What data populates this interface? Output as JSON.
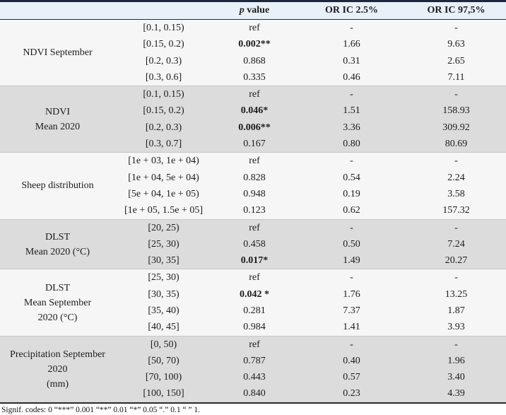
{
  "colors": {
    "header_bg": "#e9f1f8",
    "group_light_bg": "#f6f6f6",
    "group_dark_bg": "#dcdcdc",
    "frame_rule": "#1c2742"
  },
  "table": {
    "header": {
      "p_italic": "p",
      "p_rest": " value",
      "or_low": "OR IC 2.5%",
      "or_high": "OR IC 97,5%"
    },
    "groups": [
      {
        "label_lines": [
          "NDVI September"
        ],
        "shade": "light",
        "rows": [
          {
            "interval": "[0.1, 0.15)",
            "p": "ref",
            "or_low": "-",
            "or_high": "-"
          },
          {
            "interval": "[0.15, 0.2)",
            "p": "0.002**",
            "or_low": "1.66",
            "or_high": "9.63"
          },
          {
            "interval": "[0.2, 0.3)",
            "p": "0.868",
            "or_low": "0.31",
            "or_high": "2.65"
          },
          {
            "interval": "[0.3, 0.6]",
            "p": "0.335",
            "or_low": "0.46",
            "or_high": "7.11"
          }
        ]
      },
      {
        "label_lines": [
          "NDVI",
          "Mean 2020"
        ],
        "shade": "dark",
        "rows": [
          {
            "interval": "[0.1, 0.15)",
            "p": "ref",
            "or_low": "-",
            "or_high": "-"
          },
          {
            "interval": "[0.15, 0.2)",
            "p": "0.046*",
            "or_low": "1.51",
            "or_high": "158.93"
          },
          {
            "interval": "[0.2, 0.3)",
            "p": "0.006**",
            "or_low": "3.36",
            "or_high": "309.92"
          },
          {
            "interval": "[0.3, 0.7]",
            "p": "0.167",
            "or_low": "0.80",
            "or_high": "80.69"
          }
        ]
      },
      {
        "label_lines": [
          "Sheep distribution"
        ],
        "shade": "light",
        "rows": [
          {
            "interval": "[1e + 03, 1e + 04)",
            "p": "ref",
            "or_low": "-",
            "or_high": "-"
          },
          {
            "interval": "[1e + 04, 5e + 04)",
            "p": "0.828",
            "or_low": "0.54",
            "or_high": "2.24"
          },
          {
            "interval": "[5e + 04, 1e + 05)",
            "p": "0.948",
            "or_low": "0.19",
            "or_high": "3.58"
          },
          {
            "interval": "[1e + 05, 1.5e + 05]",
            "p": "0.123",
            "or_low": "0.62",
            "or_high": "157.32"
          }
        ]
      },
      {
        "label_lines": [
          "DLST",
          "Mean 2020 (°C)"
        ],
        "shade": "dark",
        "rows": [
          {
            "interval": "[20, 25)",
            "p": "ref",
            "or_low": "-",
            "or_high": "-"
          },
          {
            "interval": "[25, 30)",
            "p": "0.458",
            "or_low": "0.50",
            "or_high": "7.24"
          },
          {
            "interval": "[30, 35]",
            "p": "0.017*",
            "or_low": "1.49",
            "or_high": "20.27"
          }
        ]
      },
      {
        "label_lines": [
          "DLST",
          "Mean September",
          "2020 (°C)"
        ],
        "shade": "light",
        "rows": [
          {
            "interval": "[25, 30)",
            "p": "ref",
            "or_low": "-",
            "or_high": "-"
          },
          {
            "interval": "[30, 35)",
            "p": "0.042 *",
            "or_low": "1.76",
            "or_high": "13.25"
          },
          {
            "interval": "[35, 40)",
            "p": "0.281",
            "or_low": "7.37",
            "or_high": "1.87"
          },
          {
            "interval": "[40, 45]",
            "p": "0.984",
            "or_low": "1.41",
            "or_high": "3.93"
          }
        ]
      },
      {
        "label_lines": [
          "Precipitation September",
          "2020",
          "(mm)"
        ],
        "shade": "dark",
        "rows": [
          {
            "interval": "[0, 50)",
            "p": "ref",
            "or_low": "-",
            "or_high": "-"
          },
          {
            "interval": "[50, 70)",
            "p": "0.787",
            "or_low": "0.40",
            "or_high": "1.96"
          },
          {
            "interval": "[70, 100)",
            "p": "0.443",
            "or_low": "0.57",
            "or_high": "3.40"
          },
          {
            "interval": "[100, 150]",
            "p": "0.840",
            "or_low": "0.23",
            "or_high": "4.39"
          }
        ]
      }
    ]
  },
  "footer": {
    "signif_codes": "Signif. codes: 0 “***” 0.001 “**” 0.01 “*” 0.05 “.” 0.1 “ ” 1."
  }
}
